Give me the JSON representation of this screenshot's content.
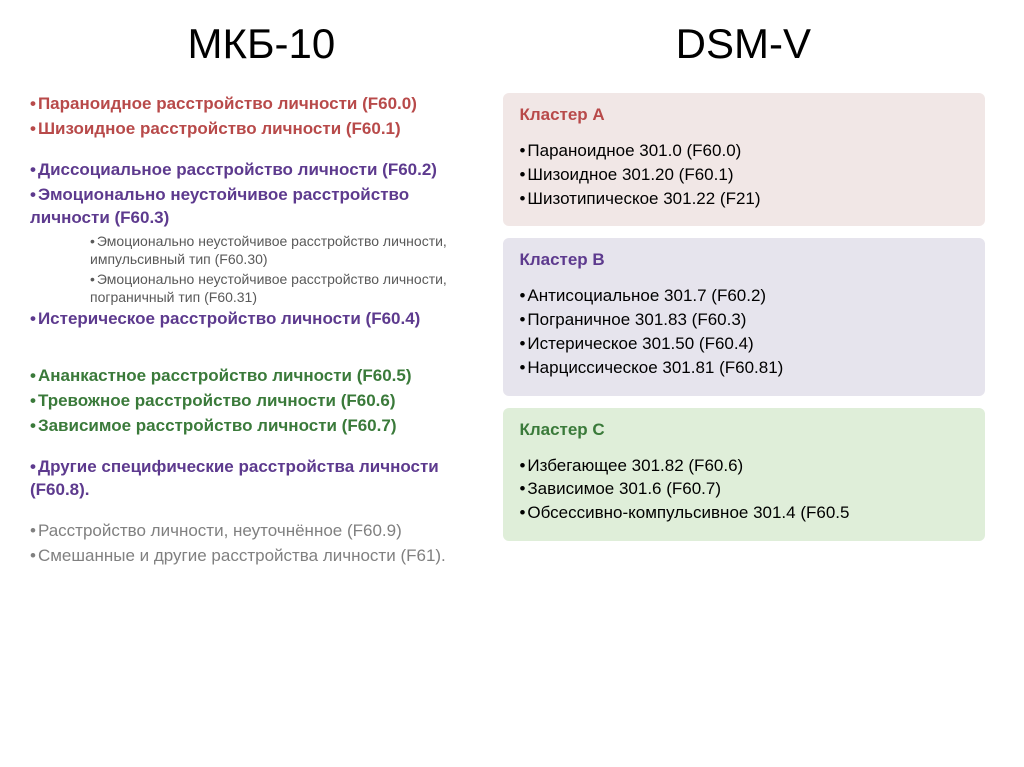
{
  "colors": {
    "red": "#b84a4a",
    "purple": "#5d3a8e",
    "green": "#3a7a3a",
    "gray": "#808080",
    "subgray": "#595959",
    "black": "#000000",
    "cluster_a_bg": "#f1e7e6",
    "cluster_a_title": "#b84a4a",
    "cluster_b_bg": "#e6e4ed",
    "cluster_b_title": "#5d3a8e",
    "cluster_c_bg": "#dfeed9",
    "cluster_c_title": "#3a7a3a"
  },
  "titles": {
    "left": "МКБ-10",
    "right": "DSM-V"
  },
  "left_column": [
    {
      "type": "item",
      "bold": true,
      "color": "red",
      "text": "Параноидное расстройство личности (F60.0)"
    },
    {
      "type": "item",
      "bold": true,
      "color": "red",
      "text": "Шизоидное расстройство личности (F60.1)"
    },
    {
      "type": "gap"
    },
    {
      "type": "item",
      "bold": true,
      "color": "purple",
      "text": "Диссоциальное расстройство личности (F60.2)"
    },
    {
      "type": "item",
      "bold": true,
      "color": "purple",
      "text": "Эмоционально неустойчивое расстройство личности (F60.3)"
    },
    {
      "type": "sub",
      "text": "Эмоционально неустойчивое расстройство личности, импульсивный тип (F60.30)"
    },
    {
      "type": "sub",
      "text": "Эмоционально неустойчивое расстройство личности, пограничный тип (F60.31)"
    },
    {
      "type": "item",
      "bold": true,
      "color": "purple",
      "text": "Истерическое расстройство личности (F60.4)"
    },
    {
      "type": "gap"
    },
    {
      "type": "gap"
    },
    {
      "type": "item",
      "bold": true,
      "color": "green",
      "text": "Ананкастное расстройство личности (F60.5)"
    },
    {
      "type": "item",
      "bold": true,
      "color": "green",
      "text": "Тревожное расстройство личности (F60.6)"
    },
    {
      "type": "item",
      "bold": true,
      "color": "green",
      "text": "Зависимое расстройство личности (F60.7)"
    },
    {
      "type": "gap"
    },
    {
      "type": "item",
      "bold": true,
      "color": "purple",
      "text": "Другие специфические расстройства личности (F60.8)."
    },
    {
      "type": "gap"
    },
    {
      "type": "item",
      "bold": false,
      "color": "gray",
      "text": "Расстройство личности, неуточнённое (F60.9)"
    },
    {
      "type": "item",
      "bold": false,
      "color": "gray",
      "text": "Смешанные и другие расстройства личности (F61)."
    }
  ],
  "clusters": [
    {
      "title": "Кластер А",
      "bg": "cluster_a_bg",
      "title_color": "cluster_a_title",
      "items": [
        "Параноидное 301.0 (F60.0)",
        "Шизоидное 301.20 (F60.1)",
        "Шизотипическое 301.22 (F21)"
      ]
    },
    {
      "title": "Кластер В",
      "bg": "cluster_b_bg",
      "title_color": "cluster_b_title",
      "items": [
        "Антисоциальное 301.7 (F60.2)",
        "Пограничное 301.83 (F60.3)",
        "Истерическое 301.50 (F60.4)",
        "Нарциссическое 301.81 (F60.81)"
      ]
    },
    {
      "title": "Кластер С",
      "bg": "cluster_c_bg",
      "title_color": "cluster_c_title",
      "items": [
        "Избегающее 301.82 (F60.6)",
        "Зависимое 301.6 (F60.7)",
        "Обсессивно-компульсивное 301.4 (F60.5"
      ]
    }
  ]
}
